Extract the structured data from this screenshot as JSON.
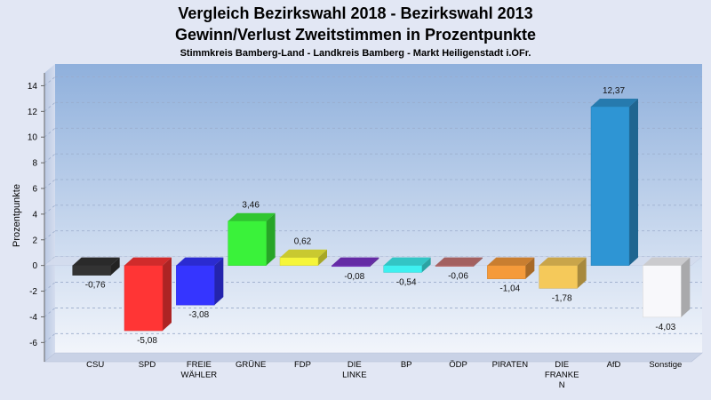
{
  "title": "Vergleich Bezirkswahl 2018 - Bezirkswahl 2013",
  "subtitle": "Gewinn/Verlust Zweitstimmen in Prozentpunkte",
  "subsubtitle": "Stimmkreis Bamberg-Land - Landkreis Bamberg - Markt Heiligenstadt i.OFr.",
  "chart_data": {
    "type": "bar",
    "title": "Vergleich Bezirkswahl 2018 - Bezirkswahl 2013",
    "ylabel": "Prozentpunkte",
    "xlabel": "",
    "ylim": [
      -7.5,
      15
    ],
    "yticks": [
      14,
      12,
      10,
      8,
      6,
      4,
      2,
      0,
      -2,
      -4,
      -6
    ],
    "grid": true,
    "categories": [
      {
        "lines": [
          "CSU"
        ]
      },
      {
        "lines": [
          "SPD"
        ]
      },
      {
        "lines": [
          "FREIE",
          "WÄHLER"
        ]
      },
      {
        "lines": [
          "GRÜNE"
        ]
      },
      {
        "lines": [
          "FDP"
        ]
      },
      {
        "lines": [
          "DIE",
          "LINKE"
        ]
      },
      {
        "lines": [
          "BP"
        ]
      },
      {
        "lines": [
          "ÖDP"
        ]
      },
      {
        "lines": [
          "PIRATEN"
        ]
      },
      {
        "lines": [
          "DIE",
          "FRANKE",
          "N"
        ]
      },
      {
        "lines": [
          "AfD"
        ]
      },
      {
        "lines": [
          "Sonstige"
        ]
      }
    ],
    "values": [
      -0.76,
      -5.08,
      -3.08,
      3.46,
      0.62,
      -0.08,
      -0.54,
      -0.06,
      -1.04,
      -1.78,
      12.37,
      -4.03
    ],
    "labels": [
      "-0,76",
      "-5,08",
      "-3,08",
      "3,46",
      "0,62",
      "-0,08",
      "-0,54",
      "-0,06",
      "-1,04",
      "-1,78",
      "12,37",
      "-4,03"
    ],
    "colors": [
      "#333333",
      "#ff3535",
      "#3535ff",
      "#3af23a",
      "#f5f53a",
      "#7b35c9",
      "#3ef0f0",
      "#c77575",
      "#f59a3a",
      "#f5c95a",
      "#2e95d4",
      "#f8f8fb"
    ]
  }
}
